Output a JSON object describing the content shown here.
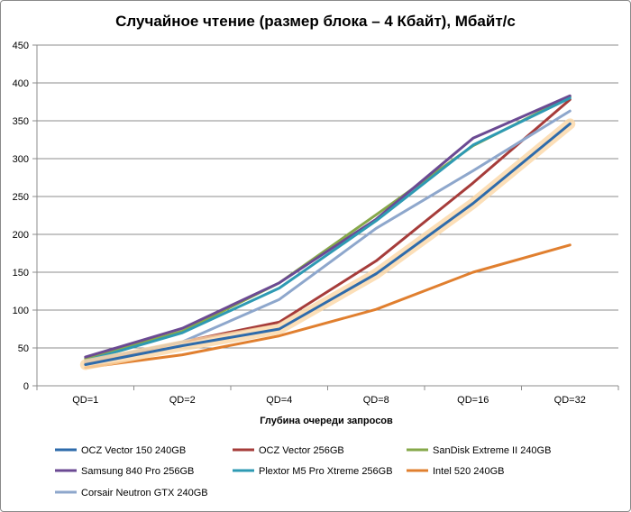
{
  "chart_data": {
    "type": "line",
    "title": "Случайное чтение (размер блока – 4 Кбайт), Мбайт/с",
    "xlabel": "Глубина очереди запросов",
    "ylabel": "",
    "categories": [
      "QD=1",
      "QD=2",
      "QD=4",
      "QD=8",
      "QD=16",
      "QD=32"
    ],
    "ylim": [
      0,
      450
    ],
    "yticks": [
      0,
      50,
      100,
      150,
      200,
      250,
      300,
      350,
      400,
      450
    ],
    "grid": true,
    "legend_position": "bottom",
    "highlighted_series": "OCZ Vector 150 240GB",
    "series": [
      {
        "name": "OCZ Vector 150 240GB",
        "color": "#2e6bab",
        "values": [
          28,
          53,
          75,
          148,
          241,
          346
        ]
      },
      {
        "name": "OCZ Vector 256GB",
        "color": "#a63c3a",
        "values": [
          30,
          58,
          84,
          165,
          268,
          378
        ]
      },
      {
        "name": "SanDisk Extreme II 240GB",
        "color": "#86a84a",
        "values": [
          36,
          72,
          136,
          226,
          317,
          382
        ]
      },
      {
        "name": "Samsung 840 Pro 256GB",
        "color": "#6b4a93",
        "values": [
          38,
          76,
          136,
          220,
          327,
          383
        ]
      },
      {
        "name": "Plextor M5 Pro Xtreme 256GB",
        "color": "#2e9ab3",
        "values": [
          33,
          70,
          129,
          218,
          318,
          380
        ]
      },
      {
        "name": "Intel 520 240GB",
        "color": "#e07f2f",
        "values": [
          24,
          41,
          66,
          101,
          150,
          186
        ]
      },
      {
        "name": "Corsair Neutron GTX 240GB",
        "color": "#8ea7cc",
        "values": [
          32,
          58,
          114,
          208,
          284,
          363
        ]
      }
    ]
  }
}
